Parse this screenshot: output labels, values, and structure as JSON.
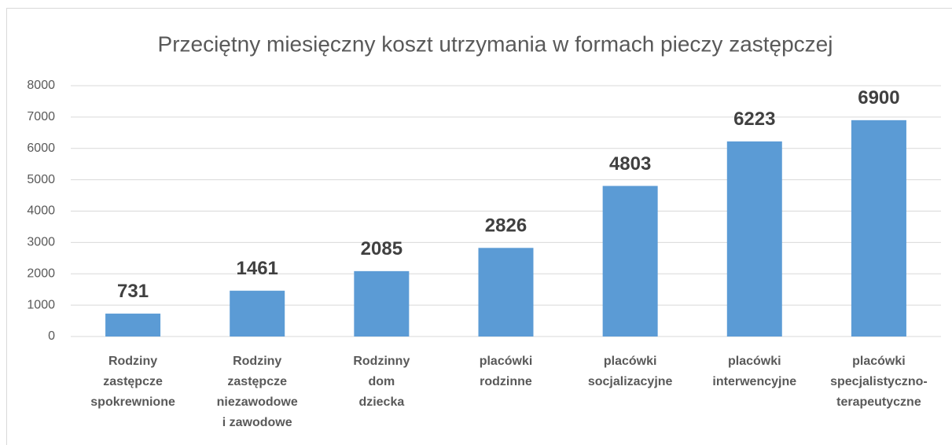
{
  "chart_data": {
    "type": "bar",
    "title": "Przeciętny miesięczny koszt utrzymania w formach pieczy zastępczej",
    "categories": [
      [
        "Rodziny",
        "zastępcze",
        "spokrewnione"
      ],
      [
        "Rodziny",
        "zastępcze",
        "niezawodowe",
        "i zawodowe"
      ],
      [
        "Rodzinny",
        "dom",
        "dziecka"
      ],
      [
        "placówki",
        "rodzinne"
      ],
      [
        "placówki",
        "socjalizacyjne"
      ],
      [
        "placówki",
        "interwencyjne"
      ],
      [
        "placówki",
        "specjalistyczno-",
        "terapeutyczne"
      ]
    ],
    "values": [
      731,
      1461,
      2085,
      2826,
      4803,
      6223,
      6900
    ],
    "color": "#5b9bd5",
    "ylim": [
      0,
      8000
    ],
    "yticks": [
      0,
      1000,
      2000,
      3000,
      4000,
      5000,
      6000,
      7000,
      8000
    ],
    "grid": true
  }
}
